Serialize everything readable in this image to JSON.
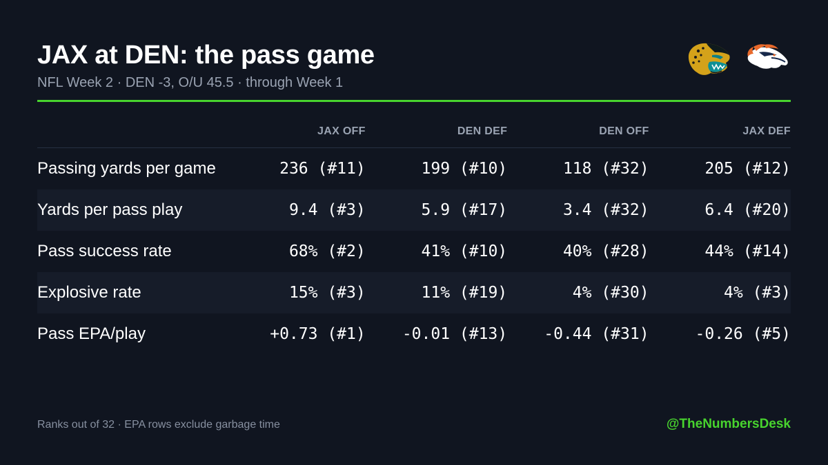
{
  "header": {
    "title": "JAX at DEN: the pass game",
    "subtitle": "NFL Week 2 · DEN -3, O/U 45.5 · through Week 1"
  },
  "logos": [
    {
      "team": "JAX",
      "icon": "jaguar-head-logo"
    },
    {
      "team": "DEN",
      "icon": "bronco-head-logo"
    }
  ],
  "colors": {
    "background": "#101520",
    "accent": "#48d42e",
    "muted_text": "#9aa3b2",
    "row_alt": "#161c29"
  },
  "table": {
    "columns": [
      "JAX OFF",
      "DEN DEF",
      "DEN OFF",
      "JAX DEF"
    ],
    "rows": [
      {
        "label": "Passing yards per game",
        "values": [
          "236 (#11)",
          "199 (#10)",
          "118 (#32)",
          "205 (#12)"
        ]
      },
      {
        "label": "Yards per pass play",
        "values": [
          "9.4 (#3)",
          "5.9 (#17)",
          "3.4 (#32)",
          "6.4 (#20)"
        ]
      },
      {
        "label": "Pass success rate",
        "values": [
          "68% (#2)",
          "41% (#10)",
          "40% (#28)",
          "44% (#14)"
        ]
      },
      {
        "label": "Explosive rate",
        "values": [
          "15% (#3)",
          "11% (#19)",
          "4% (#30)",
          "4% (#3)"
        ]
      },
      {
        "label": "Pass EPA/play",
        "values": [
          "+0.73 (#1)",
          "-0.01 (#13)",
          "-0.44 (#31)",
          "-0.26 (#5)"
        ]
      }
    ]
  },
  "footer": {
    "note": "Ranks out of 32 · EPA rows exclude garbage time",
    "handle": "@TheNumbersDesk"
  }
}
